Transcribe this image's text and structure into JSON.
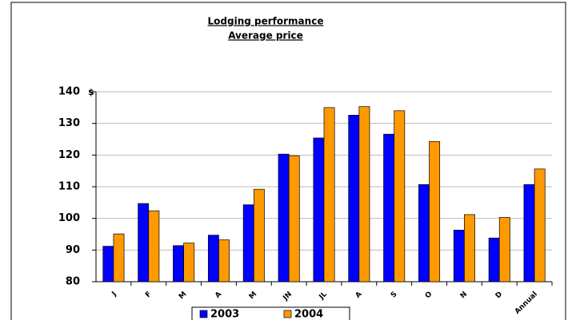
{
  "chart_data": {
    "type": "bar",
    "title": "Lodging performance",
    "subtitle": "Average price",
    "y_label": "$",
    "categories": [
      "J",
      "F",
      "M",
      "A",
      "M",
      "JN",
      "JL",
      "A",
      "S",
      "O",
      "N",
      "D",
      "Annual"
    ],
    "series": [
      {
        "name": "2003",
        "color": "#0000ff",
        "values": [
          91.2,
          104.7,
          91.4,
          94.7,
          104.3,
          120.3,
          125.4,
          132.6,
          126.6,
          110.7,
          96.3,
          93.8,
          110.7
        ]
      },
      {
        "name": "2004",
        "color": "#ff9900",
        "values": [
          95.1,
          102.4,
          92.2,
          93.2,
          109.2,
          119.8,
          135.0,
          135.3,
          134.0,
          124.3,
          101.2,
          100.3,
          115.6
        ]
      }
    ],
    "ylim": [
      80,
      140
    ],
    "yticks": [
      80,
      90,
      100,
      110,
      120,
      130,
      140
    ],
    "grid": true,
    "legend": "bottom"
  }
}
